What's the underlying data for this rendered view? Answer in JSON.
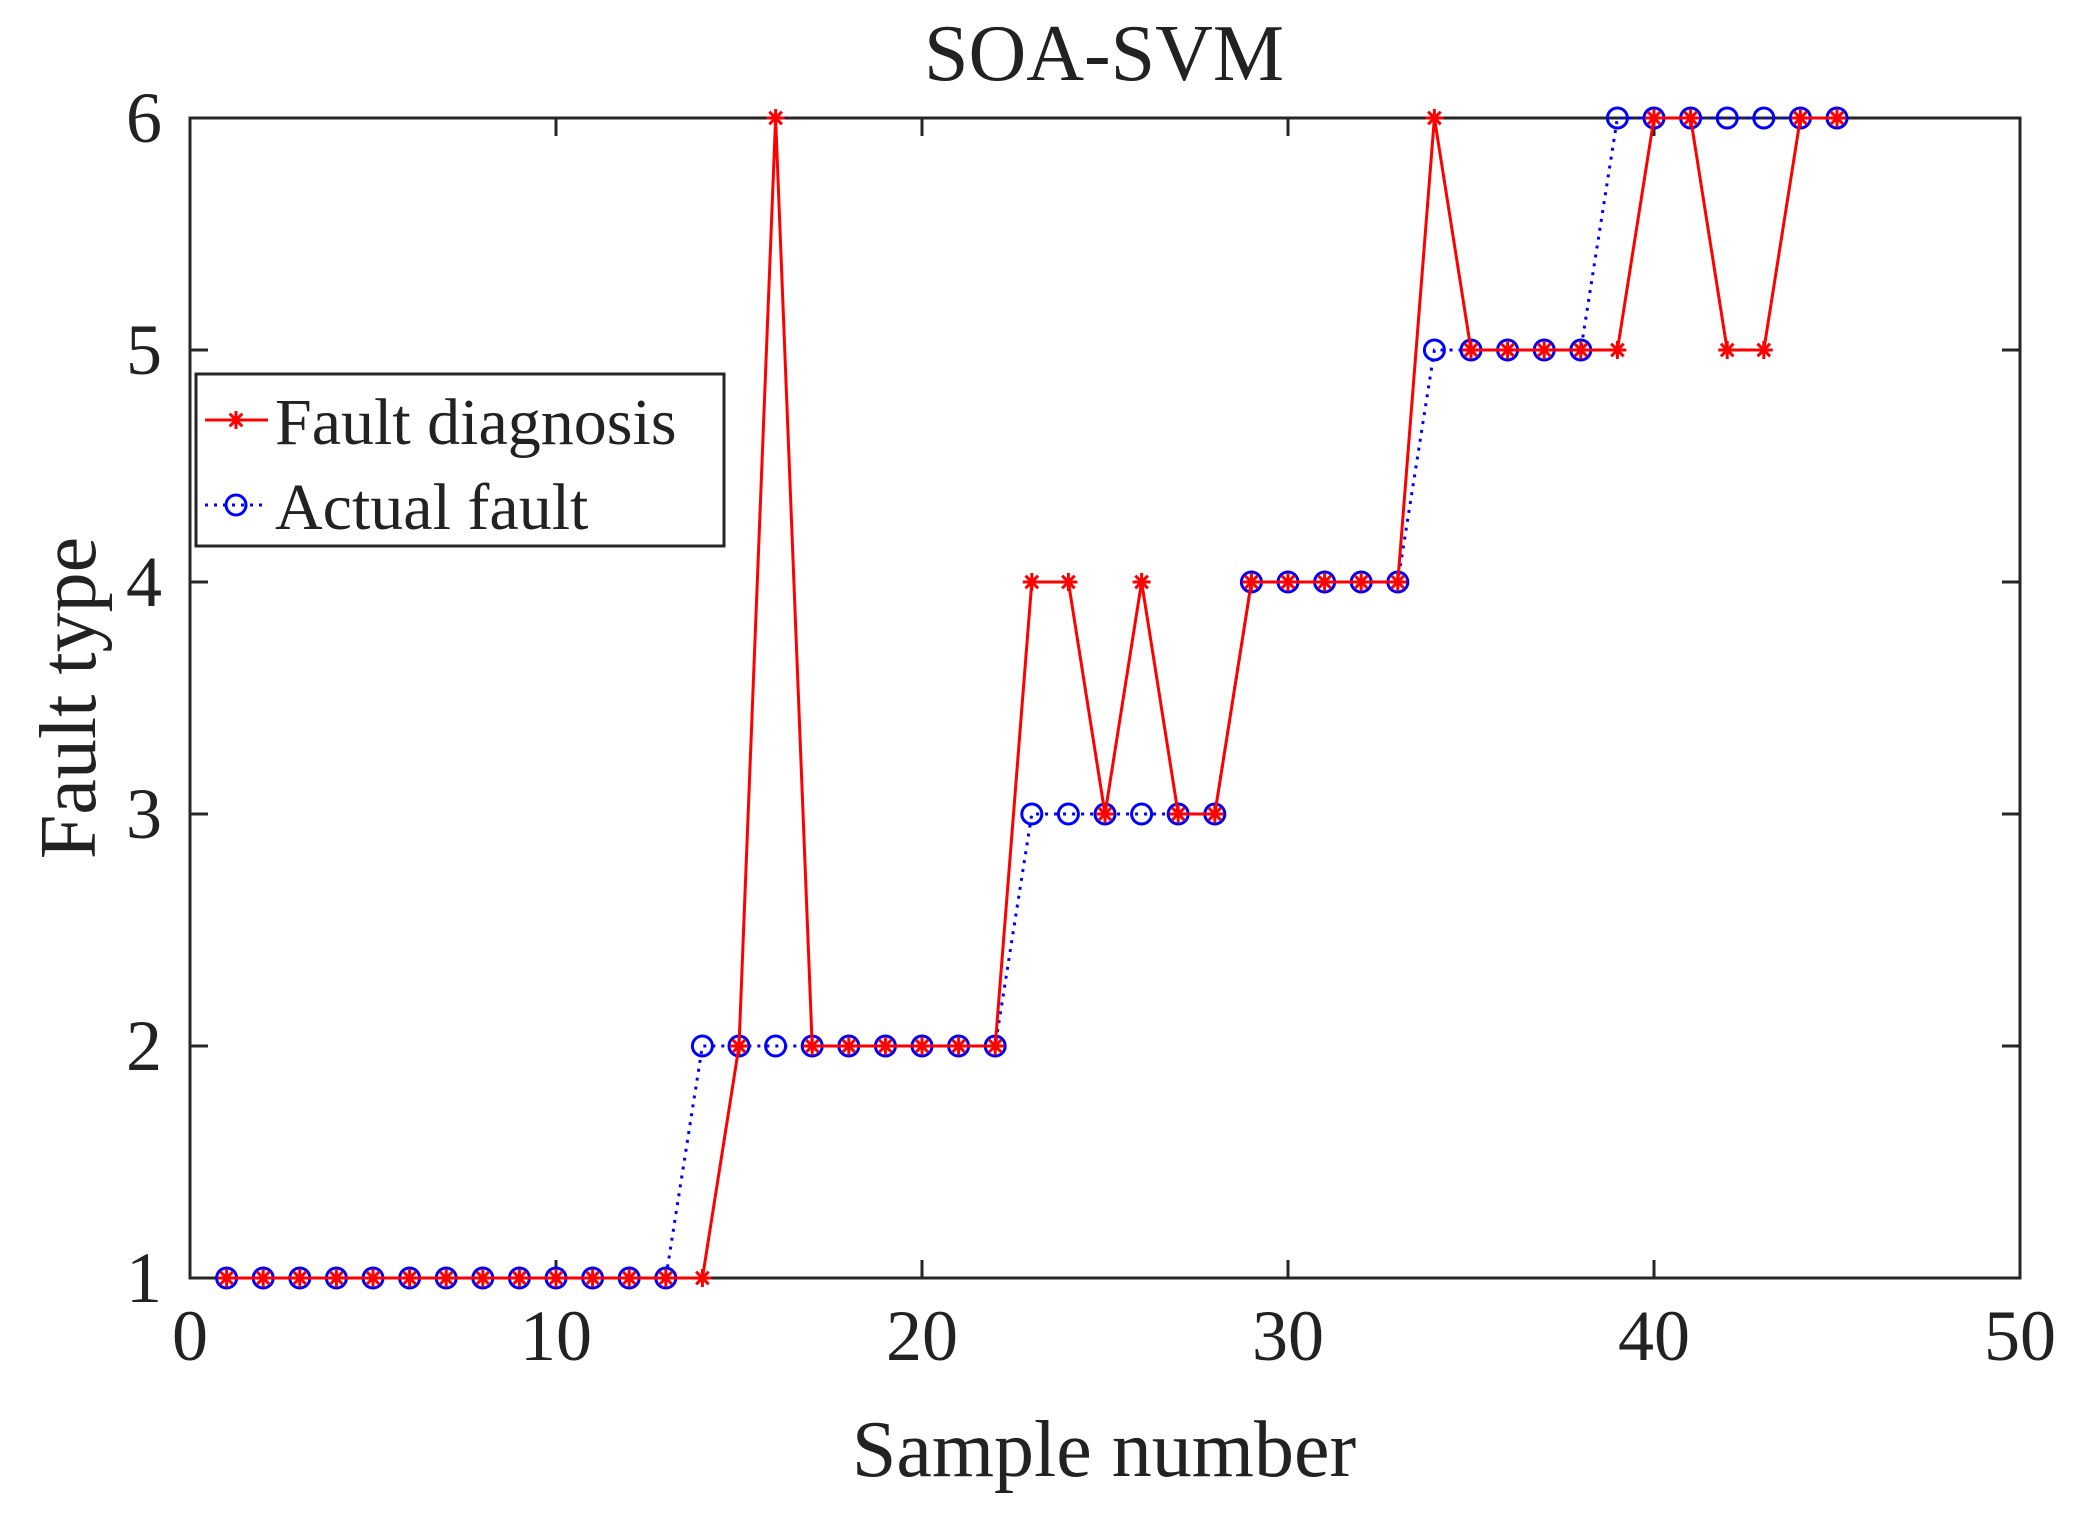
{
  "chart_data": {
    "type": "line",
    "title": "SOA-SVM",
    "xlabel": "Sample number",
    "ylabel": "Fault type",
    "xlim": [
      0,
      50
    ],
    "ylim": [
      1,
      6
    ],
    "xticks": [
      0,
      10,
      20,
      30,
      40,
      50
    ],
    "yticks": [
      1,
      2,
      3,
      4,
      5,
      6
    ],
    "x": [
      1,
      2,
      3,
      4,
      5,
      6,
      7,
      8,
      9,
      10,
      11,
      12,
      13,
      14,
      15,
      16,
      17,
      18,
      19,
      20,
      21,
      22,
      23,
      24,
      25,
      26,
      27,
      28,
      29,
      30,
      31,
      32,
      33,
      34,
      35,
      36,
      37,
      38,
      39,
      40,
      41,
      42,
      43,
      44,
      45
    ],
    "series": [
      {
        "name": "Fault diagnosis",
        "color": "#ff0000",
        "line_style": "solid",
        "marker": "asterisk",
        "values": [
          1,
          1,
          1,
          1,
          1,
          1,
          1,
          1,
          1,
          1,
          1,
          1,
          1,
          1,
          2,
          6,
          2,
          2,
          2,
          2,
          2,
          2,
          4,
          4,
          3,
          4,
          3,
          3,
          4,
          4,
          4,
          4,
          4,
          6,
          5,
          5,
          5,
          5,
          5,
          6,
          6,
          5,
          5,
          6,
          6
        ]
      },
      {
        "name": "Actual fault",
        "color": "#0000ff",
        "line_style": "dotted",
        "marker": "circle",
        "values": [
          1,
          1,
          1,
          1,
          1,
          1,
          1,
          1,
          1,
          1,
          1,
          1,
          1,
          2,
          2,
          2,
          2,
          2,
          2,
          2,
          2,
          2,
          3,
          3,
          3,
          3,
          3,
          3,
          4,
          4,
          4,
          4,
          4,
          5,
          5,
          5,
          5,
          5,
          6,
          6,
          6,
          6,
          6,
          6,
          6
        ]
      }
    ],
    "legend_position": "upper-left",
    "grid": false
  }
}
